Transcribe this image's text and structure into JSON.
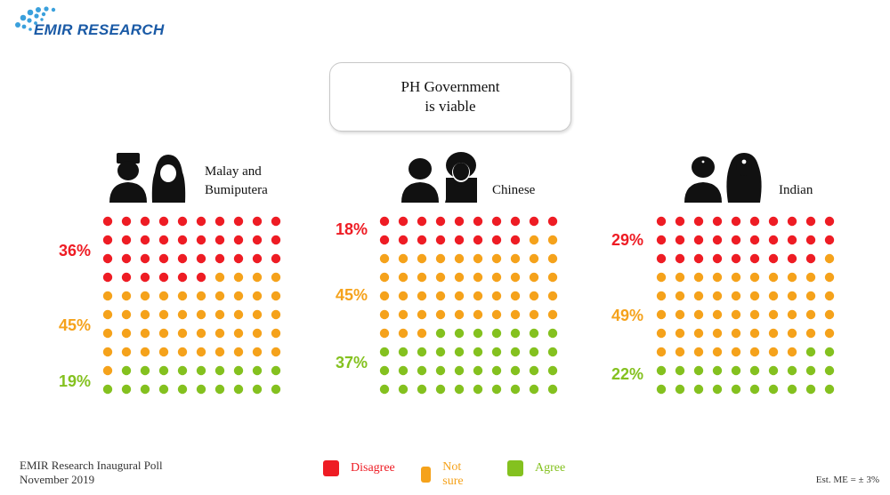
{
  "brand": {
    "name": "EMIR RESEARCH"
  },
  "title": {
    "line1": "PH Government",
    "line2": "is viable"
  },
  "colors": {
    "disagree": "#ee1c24",
    "not_sure": "#f5a21b",
    "agree": "#84c11f"
  },
  "chart_data": [
    {
      "type": "waffle",
      "group": "Malay and Bumiputera",
      "group_lines": [
        "Malay and",
        "Bumiputera"
      ],
      "categories": [
        "Disagree",
        "Not sure",
        "Agree"
      ],
      "values": [
        36,
        45,
        19
      ],
      "labels": [
        "36%",
        "45%",
        "19%"
      ],
      "grid": [
        10,
        10
      ]
    },
    {
      "type": "waffle",
      "group": "Chinese",
      "group_lines": [
        "Chinese"
      ],
      "categories": [
        "Disagree",
        "Not sure",
        "Agree"
      ],
      "values": [
        18,
        45,
        37
      ],
      "labels": [
        "18%",
        "45%",
        "37%"
      ],
      "grid": [
        10,
        10
      ]
    },
    {
      "type": "waffle",
      "group": "Indian",
      "group_lines": [
        "Indian"
      ],
      "categories": [
        "Disagree",
        "Not sure",
        "Agree"
      ],
      "values": [
        29,
        49,
        22
      ],
      "labels": [
        "29%",
        "49%",
        "22%"
      ],
      "grid": [
        10,
        10
      ]
    }
  ],
  "legend": [
    {
      "label": "Disagree",
      "color": "#ee1c24"
    },
    {
      "label": "Not sure",
      "color": "#f5a21b"
    },
    {
      "label": "Agree",
      "color": "#84c11f"
    }
  ],
  "footer": {
    "line1": "EMIR Research Inaugural Poll",
    "line2": "November 2019"
  },
  "margin_of_error": "Est. ME = ± 3%"
}
